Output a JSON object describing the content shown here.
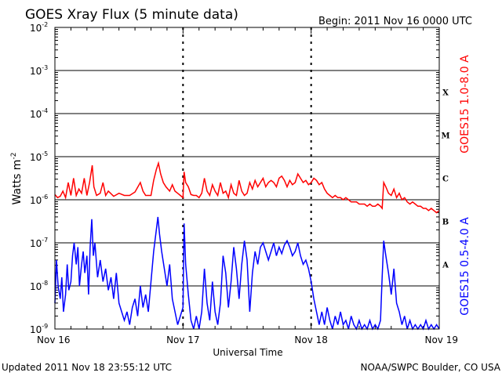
{
  "header": {
    "title": "GOES Xray Flux (5 minute data)",
    "begin": "Begin:  2011 Nov 16 0000 UTC"
  },
  "footer": {
    "updated": "Updated 2011 Nov 18 23:55:12 UTC",
    "credit": "NOAA/SWPC Boulder, CO USA"
  },
  "chart_data": {
    "type": "line",
    "title": "GOES Xray Flux (5 minute data)",
    "xlabel": "Universal Time",
    "ylabel": "Watts m",
    "ylabel_exponent": "-2",
    "yscale": "log",
    "ylim": [
      1e-09,
      0.01
    ],
    "xlim_hours": [
      0,
      72
    ],
    "x_ticks": [
      {
        "hour": 0,
        "label": "Nov 16"
      },
      {
        "hour": 24,
        "label": "Nov 17"
      },
      {
        "hour": 48,
        "label": "Nov 18"
      },
      {
        "hour": 72,
        "label": "Nov 19"
      }
    ],
    "y_ticks": [
      {
        "exp": -9,
        "base": "10",
        "sup": "-9"
      },
      {
        "exp": -8,
        "base": "10",
        "sup": "-8"
      },
      {
        "exp": -7,
        "base": "10",
        "sup": "-7"
      },
      {
        "exp": -6,
        "base": "10",
        "sup": "-6"
      },
      {
        "exp": -5,
        "base": "10",
        "sup": "-5"
      },
      {
        "exp": -4,
        "base": "10",
        "sup": "-4"
      },
      {
        "exp": -3,
        "base": "10",
        "sup": "-3"
      },
      {
        "exp": -2,
        "base": "10",
        "sup": "-2"
      }
    ],
    "flare_classes": [
      {
        "label": "X",
        "exp": -3.5
      },
      {
        "label": "M",
        "exp": -4.5
      },
      {
        "label": "C",
        "exp": -5.5
      },
      {
        "label": "B",
        "exp": -6.5
      },
      {
        "label": "A",
        "exp": -7.5
      }
    ],
    "grid": true,
    "series": [
      {
        "name": "GOES15 1.0-8.0 A",
        "color": "#ff0000",
        "points": [
          [
            0,
            -5.88
          ],
          [
            0.5,
            -5.95
          ],
          [
            1,
            -5.92
          ],
          [
            1.5,
            -5.8
          ],
          [
            2,
            -5.95
          ],
          [
            2.5,
            -5.6
          ],
          [
            3,
            -5.9
          ],
          [
            3.5,
            -5.5
          ],
          [
            4,
            -5.9
          ],
          [
            4.5,
            -5.75
          ],
          [
            5,
            -5.85
          ],
          [
            5.5,
            -5.5
          ],
          [
            6,
            -5.9
          ],
          [
            6.5,
            -5.6
          ],
          [
            7,
            -5.2
          ],
          [
            7.3,
            -5.7
          ],
          [
            7.8,
            -5.9
          ],
          [
            8.5,
            -5.85
          ],
          [
            9,
            -5.6
          ],
          [
            9.5,
            -5.9
          ],
          [
            10,
            -5.8
          ],
          [
            11,
            -5.92
          ],
          [
            12,
            -5.85
          ],
          [
            13,
            -5.9
          ],
          [
            14,
            -5.9
          ],
          [
            15,
            -5.82
          ],
          [
            16,
            -5.6
          ],
          [
            16.5,
            -5.8
          ],
          [
            17,
            -5.9
          ],
          [
            18,
            -5.9
          ],
          [
            18.5,
            -5.55
          ],
          [
            19,
            -5.3
          ],
          [
            19.4,
            -5.15
          ],
          [
            19.8,
            -5.4
          ],
          [
            20.3,
            -5.6
          ],
          [
            20.8,
            -5.7
          ],
          [
            21.5,
            -5.8
          ],
          [
            22,
            -5.65
          ],
          [
            22.5,
            -5.8
          ],
          [
            23,
            -5.85
          ],
          [
            23.5,
            -5.9
          ],
          [
            24,
            -5.95
          ],
          [
            24.2,
            -5.35
          ],
          [
            24.5,
            -5.6
          ],
          [
            25,
            -5.7
          ],
          [
            25.5,
            -5.88
          ],
          [
            26,
            -5.9
          ],
          [
            26.5,
            -5.9
          ],
          [
            27,
            -5.95
          ],
          [
            27.5,
            -5.85
          ],
          [
            28,
            -5.5
          ],
          [
            28.5,
            -5.8
          ],
          [
            29,
            -5.9
          ],
          [
            29.5,
            -5.65
          ],
          [
            30,
            -5.8
          ],
          [
            30.5,
            -5.9
          ],
          [
            31,
            -5.6
          ],
          [
            31.5,
            -5.85
          ],
          [
            32,
            -5.8
          ],
          [
            32.5,
            -5.95
          ],
          [
            33,
            -5.65
          ],
          [
            33.5,
            -5.85
          ],
          [
            34,
            -5.9
          ],
          [
            34.5,
            -5.55
          ],
          [
            35,
            -5.8
          ],
          [
            35.5,
            -5.9
          ],
          [
            36,
            -5.85
          ],
          [
            36.5,
            -5.6
          ],
          [
            37,
            -5.75
          ],
          [
            37.5,
            -5.55
          ],
          [
            38,
            -5.7
          ],
          [
            38.5,
            -5.6
          ],
          [
            39,
            -5.5
          ],
          [
            39.5,
            -5.7
          ],
          [
            40,
            -5.6
          ],
          [
            40.5,
            -5.55
          ],
          [
            41,
            -5.6
          ],
          [
            41.5,
            -5.7
          ],
          [
            42,
            -5.5
          ],
          [
            42.5,
            -5.45
          ],
          [
            43,
            -5.55
          ],
          [
            43.5,
            -5.7
          ],
          [
            44,
            -5.55
          ],
          [
            44.5,
            -5.65
          ],
          [
            45,
            -5.6
          ],
          [
            45.5,
            -5.4
          ],
          [
            46,
            -5.5
          ],
          [
            46.5,
            -5.6
          ],
          [
            47,
            -5.55
          ],
          [
            47.5,
            -5.65
          ],
          [
            48,
            -5.6
          ],
          [
            48.5,
            -5.5
          ],
          [
            49,
            -5.55
          ],
          [
            49.5,
            -5.65
          ],
          [
            50,
            -5.6
          ],
          [
            50.5,
            -5.75
          ],
          [
            51,
            -5.85
          ],
          [
            51.5,
            -5.9
          ],
          [
            52,
            -5.95
          ],
          [
            52.5,
            -5.9
          ],
          [
            53,
            -5.95
          ],
          [
            53.5,
            -5.95
          ],
          [
            54,
            -6.0
          ],
          [
            54.5,
            -5.95
          ],
          [
            55,
            -6.0
          ],
          [
            55.5,
            -6.05
          ],
          [
            56,
            -6.05
          ],
          [
            56.5,
            -6.05
          ],
          [
            57,
            -6.1
          ],
          [
            57.5,
            -6.1
          ],
          [
            58,
            -6.1
          ],
          [
            58.5,
            -6.15
          ],
          [
            59,
            -6.1
          ],
          [
            59.5,
            -6.15
          ],
          [
            60,
            -6.15
          ],
          [
            60.5,
            -6.1
          ],
          [
            61,
            -6.15
          ],
          [
            61.3,
            -6.2
          ],
          [
            61.6,
            -5.6
          ],
          [
            62,
            -5.7
          ],
          [
            62.5,
            -5.85
          ],
          [
            63,
            -5.9
          ],
          [
            63.5,
            -5.75
          ],
          [
            64,
            -5.95
          ],
          [
            64.5,
            -5.85
          ],
          [
            65,
            -6.0
          ],
          [
            65.5,
            -5.95
          ],
          [
            66,
            -6.05
          ],
          [
            66.5,
            -6.1
          ],
          [
            67,
            -6.05
          ],
          [
            67.5,
            -6.1
          ],
          [
            68,
            -6.15
          ],
          [
            68.5,
            -6.15
          ],
          [
            69,
            -6.2
          ],
          [
            69.5,
            -6.2
          ],
          [
            70,
            -6.25
          ],
          [
            70.5,
            -6.2
          ],
          [
            71,
            -6.25
          ],
          [
            71.5,
            -6.3
          ],
          [
            72,
            -6.25
          ]
        ]
      },
      {
        "name": "GOES15 0.5-4.0 A",
        "color": "#0000ff",
        "points": [
          [
            0,
            -8.4
          ],
          [
            0.3,
            -7.4
          ],
          [
            0.6,
            -8.0
          ],
          [
            1,
            -8.3
          ],
          [
            1.3,
            -7.8
          ],
          [
            1.6,
            -8.6
          ],
          [
            2,
            -8.2
          ],
          [
            2.3,
            -7.5
          ],
          [
            2.6,
            -8.1
          ],
          [
            3,
            -7.9
          ],
          [
            3.3,
            -7.3
          ],
          [
            3.6,
            -7.0
          ],
          [
            4,
            -7.5
          ],
          [
            4.3,
            -7.1
          ],
          [
            4.6,
            -8.0
          ],
          [
            5,
            -7.5
          ],
          [
            5.3,
            -7.2
          ],
          [
            5.6,
            -7.7
          ],
          [
            6,
            -7.3
          ],
          [
            6.3,
            -8.2
          ],
          [
            6.6,
            -7.1
          ],
          [
            6.9,
            -6.45
          ],
          [
            7.2,
            -7.3
          ],
          [
            7.5,
            -7.0
          ],
          [
            8,
            -7.8
          ],
          [
            8.5,
            -7.4
          ],
          [
            9,
            -7.9
          ],
          [
            9.5,
            -7.6
          ],
          [
            10,
            -8.1
          ],
          [
            10.5,
            -7.8
          ],
          [
            11,
            -8.3
          ],
          [
            11.5,
            -7.7
          ],
          [
            12,
            -8.4
          ],
          [
            12.5,
            -8.6
          ],
          [
            13,
            -8.8
          ],
          [
            13.5,
            -8.6
          ],
          [
            14,
            -8.9
          ],
          [
            14.5,
            -8.5
          ],
          [
            15,
            -8.3
          ],
          [
            15.5,
            -8.7
          ],
          [
            16,
            -8.0
          ],
          [
            16.5,
            -8.5
          ],
          [
            17,
            -8.2
          ],
          [
            17.5,
            -8.6
          ],
          [
            18,
            -7.9
          ],
          [
            18.5,
            -7.2
          ],
          [
            19,
            -6.7
          ],
          [
            19.3,
            -6.4
          ],
          [
            19.6,
            -6.8
          ],
          [
            20,
            -7.2
          ],
          [
            20.5,
            -7.6
          ],
          [
            21,
            -8.0
          ],
          [
            21.5,
            -7.5
          ],
          [
            22,
            -8.3
          ],
          [
            22.5,
            -8.6
          ],
          [
            23,
            -8.9
          ],
          [
            23.5,
            -8.7
          ],
          [
            24,
            -8.5
          ],
          [
            24.2,
            -6.55
          ],
          [
            24.5,
            -7.5
          ],
          [
            25,
            -8.2
          ],
          [
            25.5,
            -8.8
          ],
          [
            26,
            -9.0
          ],
          [
            26.5,
            -8.7
          ],
          [
            27,
            -9.0
          ],
          [
            27.5,
            -8.6
          ],
          [
            28,
            -7.6
          ],
          [
            28.5,
            -8.4
          ],
          [
            29,
            -8.8
          ],
          [
            29.5,
            -7.9
          ],
          [
            30,
            -8.6
          ],
          [
            30.5,
            -8.9
          ],
          [
            31,
            -8.4
          ],
          [
            31.5,
            -7.3
          ],
          [
            32,
            -7.7
          ],
          [
            32.5,
            -8.5
          ],
          [
            33,
            -7.9
          ],
          [
            33.5,
            -7.1
          ],
          [
            34,
            -7.6
          ],
          [
            34.5,
            -8.3
          ],
          [
            35,
            -7.5
          ],
          [
            35.5,
            -6.95
          ],
          [
            36,
            -7.4
          ],
          [
            36.5,
            -8.6
          ],
          [
            37,
            -7.7
          ],
          [
            37.5,
            -7.2
          ],
          [
            38,
            -7.5
          ],
          [
            38.5,
            -7.1
          ],
          [
            39,
            -7.0
          ],
          [
            39.5,
            -7.2
          ],
          [
            40,
            -7.4
          ],
          [
            40.5,
            -7.2
          ],
          [
            41,
            -7.0
          ],
          [
            41.5,
            -7.3
          ],
          [
            42,
            -7.1
          ],
          [
            42.5,
            -7.25
          ],
          [
            43,
            -7.05
          ],
          [
            43.5,
            -6.95
          ],
          [
            44,
            -7.1
          ],
          [
            44.5,
            -7.3
          ],
          [
            45,
            -7.2
          ],
          [
            45.5,
            -7.0
          ],
          [
            46,
            -7.3
          ],
          [
            46.5,
            -7.5
          ],
          [
            47,
            -7.4
          ],
          [
            47.5,
            -7.6
          ],
          [
            48,
            -7.9
          ],
          [
            48.5,
            -8.3
          ],
          [
            49,
            -8.6
          ],
          [
            49.5,
            -8.9
          ],
          [
            50,
            -8.6
          ],
          [
            50.5,
            -8.9
          ],
          [
            51,
            -8.5
          ],
          [
            51.5,
            -8.8
          ],
          [
            52,
            -9.0
          ],
          [
            52.5,
            -8.7
          ],
          [
            53,
            -8.9
          ],
          [
            53.5,
            -8.6
          ],
          [
            54,
            -8.9
          ],
          [
            54.5,
            -8.8
          ],
          [
            55,
            -9.0
          ],
          [
            55.5,
            -8.7
          ],
          [
            56,
            -8.9
          ],
          [
            56.5,
            -9.0
          ],
          [
            57,
            -8.8
          ],
          [
            57.5,
            -9.0
          ],
          [
            58,
            -8.9
          ],
          [
            58.5,
            -9.0
          ],
          [
            59,
            -8.8
          ],
          [
            59.5,
            -9.0
          ],
          [
            60,
            -8.9
          ],
          [
            60.5,
            -9.0
          ],
          [
            61,
            -8.8
          ],
          [
            61.3,
            -7.8
          ],
          [
            61.6,
            -6.95
          ],
          [
            62,
            -7.3
          ],
          [
            62.5,
            -7.7
          ],
          [
            63,
            -8.2
          ],
          [
            63.5,
            -7.6
          ],
          [
            64,
            -8.4
          ],
          [
            64.5,
            -8.6
          ],
          [
            65,
            -8.9
          ],
          [
            65.5,
            -8.7
          ],
          [
            66,
            -9.0
          ],
          [
            66.5,
            -8.8
          ],
          [
            67,
            -9.0
          ],
          [
            67.5,
            -8.9
          ],
          [
            68,
            -9.0
          ],
          [
            68.5,
            -8.9
          ],
          [
            69,
            -9.0
          ],
          [
            69.5,
            -8.8
          ],
          [
            70,
            -9.0
          ],
          [
            70.5,
            -8.9
          ],
          [
            71,
            -9.0
          ],
          [
            71.5,
            -8.9
          ],
          [
            72,
            -9.0
          ]
        ]
      }
    ]
  }
}
